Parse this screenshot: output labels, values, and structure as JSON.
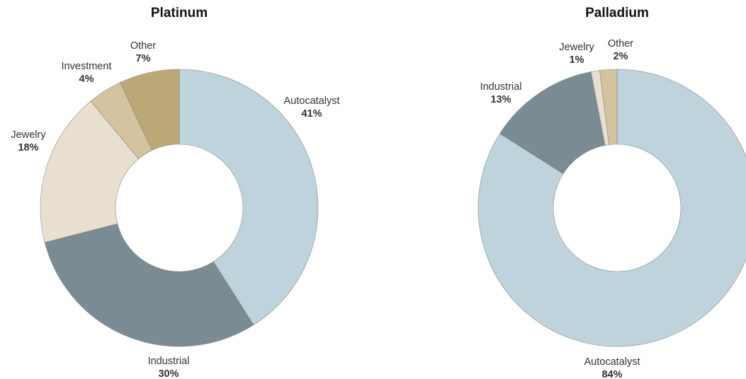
{
  "chart_data": [
    {
      "type": "pie",
      "title": "Platinum",
      "donut": true,
      "start": "12 o'clock",
      "direction": "clockwise",
      "slices": [
        {
          "label": "Autocatalyst",
          "value": 41,
          "display": "41%",
          "color": "#bed3dc"
        },
        {
          "label": "Industrial",
          "value": 30,
          "display": "30%",
          "color": "#7a8b93"
        },
        {
          "label": "Jewelry",
          "value": 18,
          "display": "18%",
          "color": "#e9dfd0"
        },
        {
          "label": "Investment",
          "value": 4,
          "display": "4%",
          "color": "#d3c39f"
        },
        {
          "label": "Other",
          "value": 7,
          "display": "7%",
          "color": "#bba877"
        }
      ]
    },
    {
      "type": "pie",
      "title": "Palladium",
      "donut": true,
      "start": "12 o'clock",
      "direction": "clockwise",
      "slices": [
        {
          "label": "Autocatalyst",
          "value": 84,
          "display": "84%",
          "color": "#bed3dc"
        },
        {
          "label": "Industrial",
          "value": 13,
          "display": "13%",
          "color": "#7a8b93"
        },
        {
          "label": "Jewelry",
          "value": 1,
          "display": "1%",
          "color": "#e9dfd0"
        },
        {
          "label": "Other",
          "value": 2,
          "display": "2%",
          "color": "#d3c39f"
        }
      ]
    }
  ]
}
